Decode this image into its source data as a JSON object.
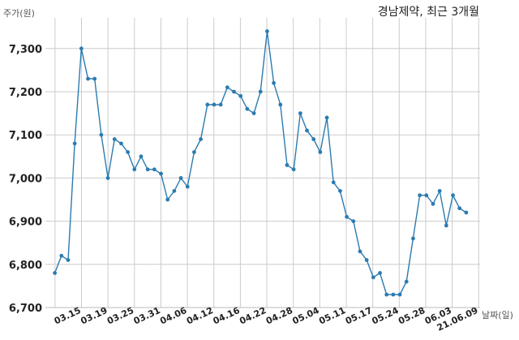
{
  "chart_data": {
    "type": "line",
    "title": "경남제약, 최근 3개월",
    "ylabel": "주가(원)",
    "xlabel": "날짜(일)",
    "ylim": [
      6700,
      7350
    ],
    "yticks": [
      6700,
      6800,
      6900,
      7000,
      7100,
      7200,
      7300
    ],
    "ytick_labels": [
      "6,700",
      "6,800",
      "6,900",
      "7,000",
      "7,100",
      "7,200",
      "7,300"
    ],
    "xtick_labels": [
      "03.15",
      "03.19",
      "03.25",
      "03.31",
      "04.06",
      "04.12",
      "04.16",
      "04.22",
      "04.28",
      "05.04",
      "05.11",
      "05.17",
      "05.24",
      "05.28",
      "06.03",
      "21.06.09"
    ],
    "grid": true,
    "line_color": "#2b7bb0",
    "values": [
      6780,
      6820,
      6810,
      7080,
      7300,
      7230,
      7230,
      7100,
      7000,
      7090,
      7080,
      7060,
      7020,
      7050,
      7020,
      7020,
      7010,
      6950,
      6970,
      7000,
      6980,
      7060,
      7090,
      7170,
      7170,
      7170,
      7210,
      7200,
      7190,
      7160,
      7150,
      7200,
      7340,
      7220,
      7170,
      7030,
      7020,
      7150,
      7110,
      7090,
      7060,
      7140,
      6990,
      6970,
      6910,
      6900,
      6830,
      6810,
      6770,
      6780,
      6730,
      6730,
      6730,
      6760,
      6860,
      6960,
      6960,
      6940,
      6970,
      6890,
      6960,
      6930,
      6920
    ]
  }
}
